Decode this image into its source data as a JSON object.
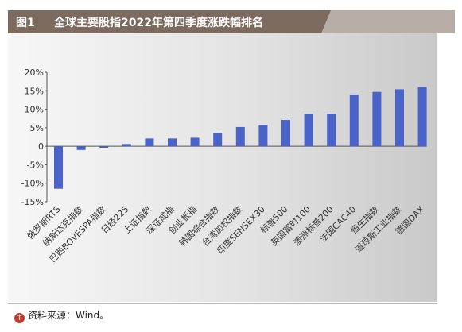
{
  "header": {
    "figure_no": "图1",
    "title": "全球主要股指2022年第四季度涨跌幅排名"
  },
  "source": {
    "icon": "up-arrow-icon",
    "text": "资料来源：Wind。"
  },
  "colors": {
    "header_bg": "#7d6a5f",
    "bar": "#4a63c8"
  },
  "chart_data": {
    "type": "bar",
    "categories": [
      "俄罗斯RTS",
      "纳斯达克指数",
      "巴西BOVESPA指数",
      "日经225",
      "上证指数",
      "深证成指",
      "创业板指",
      "韩国综合指数",
      "台湾加权指数",
      "印度SENSEX30",
      "标普500",
      "英国富时100",
      "澳洲标普200",
      "法国CAC40",
      "恒生指数",
      "道琼斯工业指数",
      "德国DAX"
    ],
    "values": [
      -11.5,
      -1.0,
      -0.4,
      0.6,
      2.1,
      2.1,
      2.3,
      3.6,
      5.2,
      5.8,
      7.1,
      8.7,
      8.7,
      14.0,
      14.7,
      15.4,
      16.0
    ],
    "yticks": [
      "20%",
      "15%",
      "10%",
      "5%",
      "0",
      "-5%",
      "-10%",
      "-15%"
    ],
    "ytick_values": [
      20,
      15,
      10,
      5,
      0,
      -5,
      -10,
      -15
    ],
    "ylim": [
      -15,
      20
    ],
    "grid": false,
    "legend": "none"
  }
}
